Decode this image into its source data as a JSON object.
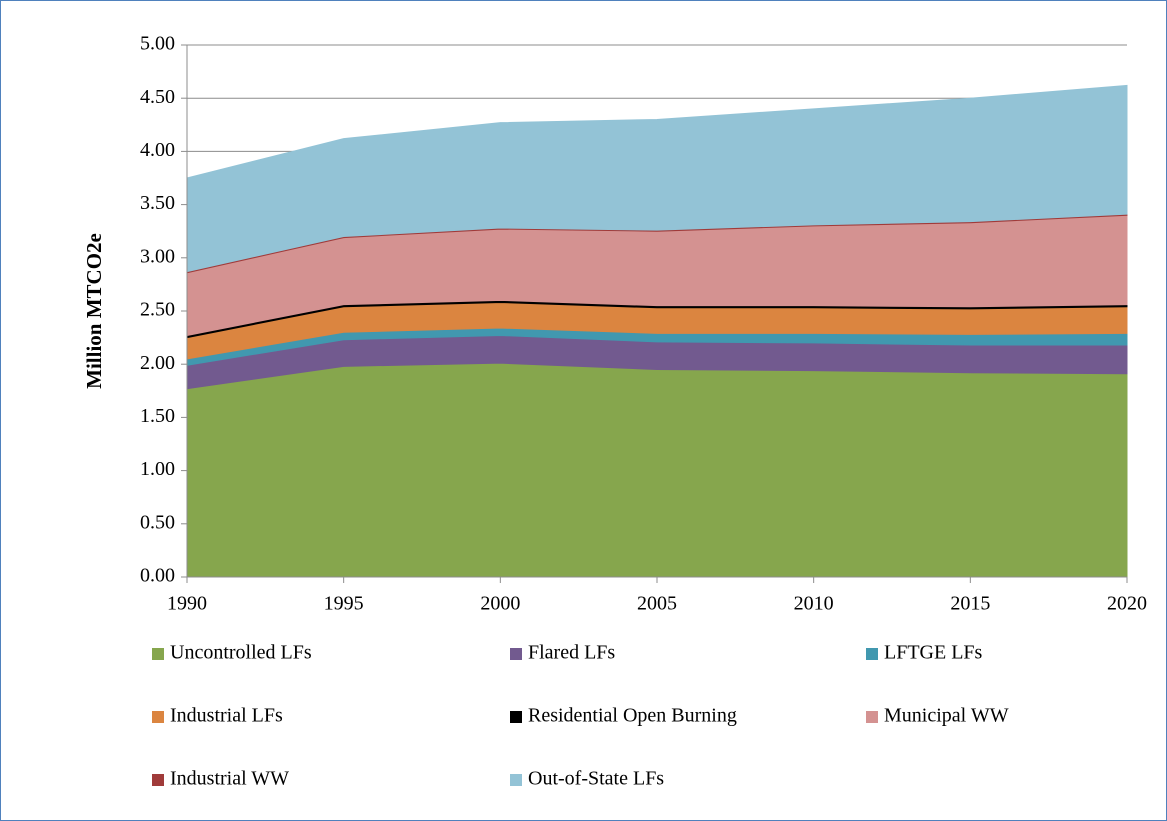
{
  "chart_data": {
    "type": "area",
    "stacked": true,
    "y_label": "Million MTCO2e",
    "x": [
      1990,
      1995,
      2000,
      2005,
      2010,
      2015,
      2020
    ],
    "xlim": [
      1990,
      2020
    ],
    "xticks": [
      1990,
      1995,
      2000,
      2005,
      2010,
      2015,
      2020
    ],
    "ylim": [
      0,
      5
    ],
    "yticks": [
      {
        "value": 0,
        "label": "0.00"
      },
      {
        "value": 0.5,
        "label": "0.50"
      },
      {
        "value": 1,
        "label": "1.00"
      },
      {
        "value": 1.5,
        "label": "1.50"
      },
      {
        "value": 2,
        "label": "2.00"
      },
      {
        "value": 2.5,
        "label": "2.50"
      },
      {
        "value": 3,
        "label": "3.00"
      },
      {
        "value": 3.5,
        "label": "3.50"
      },
      {
        "value": 4,
        "label": "4.00"
      },
      {
        "value": 4.5,
        "label": "4.50"
      },
      {
        "value": 5,
        "label": "5.00"
      }
    ],
    "grid": true,
    "legend": "bottom",
    "series": [
      {
        "name": "Uncontrolled LFs",
        "color": "#86a64d",
        "values": [
          1.77,
          1.98,
          2.01,
          1.95,
          1.94,
          1.92,
          1.91
        ]
      },
      {
        "name": "Flared LFs",
        "color": "#725a8f",
        "values": [
          0.22,
          0.25,
          0.26,
          0.26,
          0.26,
          0.26,
          0.27
        ]
      },
      {
        "name": "LFTGE LFs",
        "color": "#4198af",
        "values": [
          0.06,
          0.07,
          0.07,
          0.08,
          0.09,
          0.1,
          0.11
        ]
      },
      {
        "name": "Industrial LFs",
        "color": "#db8540",
        "values": [
          0.2,
          0.24,
          0.24,
          0.24,
          0.24,
          0.24,
          0.25
        ]
      },
      {
        "name": "Residential Open Burning",
        "color": "#000000",
        "values": [
          0.02,
          0.02,
          0.02,
          0.02,
          0.02,
          0.02,
          0.02
        ]
      },
      {
        "name": "Municipal WW",
        "color": "#d49291",
        "values": [
          0.59,
          0.63,
          0.67,
          0.7,
          0.75,
          0.79,
          0.84
        ]
      },
      {
        "name": "Industrial WW",
        "color": "#a03b3a",
        "values": [
          0.01,
          0.01,
          0.01,
          0.01,
          0.01,
          0.01,
          0.01
        ]
      },
      {
        "name": "Out-of-State LFs",
        "color": "#93c3d6",
        "values": [
          0.88,
          0.92,
          0.99,
          1.04,
          1.09,
          1.16,
          1.21
        ]
      }
    ]
  }
}
